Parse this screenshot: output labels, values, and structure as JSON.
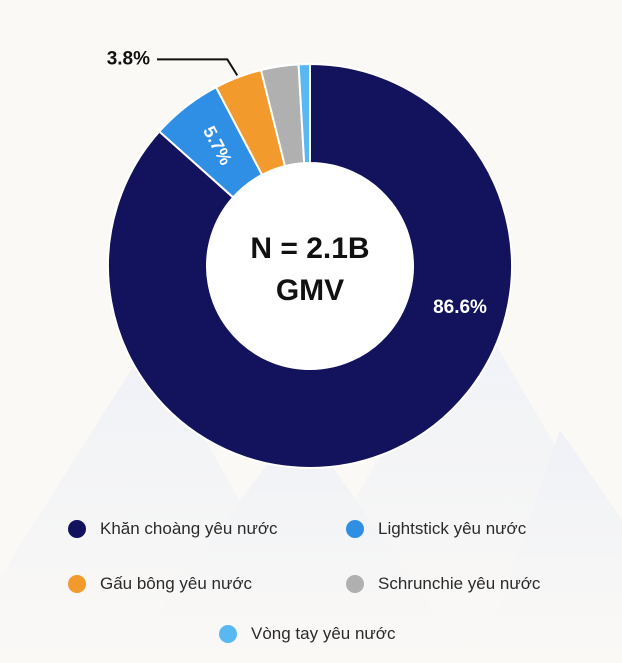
{
  "chart_data": {
    "type": "pie",
    "center_label": [
      "N = 2.1B",
      "GMV"
    ],
    "slices": [
      {
        "label": "Khăn choàng yêu nước",
        "value": 86.6,
        "display": "86.6%",
        "color": "#12135c"
      },
      {
        "label": "Lightstick yêu nước",
        "value": 5.7,
        "display": "5.7%",
        "color": "#2f8fe5"
      },
      {
        "label": "Gấu bông yêu nước",
        "value": 3.8,
        "display": "3.8%",
        "color": "#f39a2c"
      },
      {
        "label": "Schrunchie yêu nước",
        "value": 3.0,
        "display": "",
        "color": "#b0b0b0"
      },
      {
        "label": "Vòng tay yêu nước",
        "value": 0.9,
        "display": "",
        "color": "#58b8f2"
      }
    ],
    "legend_order": [
      0,
      1,
      2,
      3,
      4
    ]
  }
}
